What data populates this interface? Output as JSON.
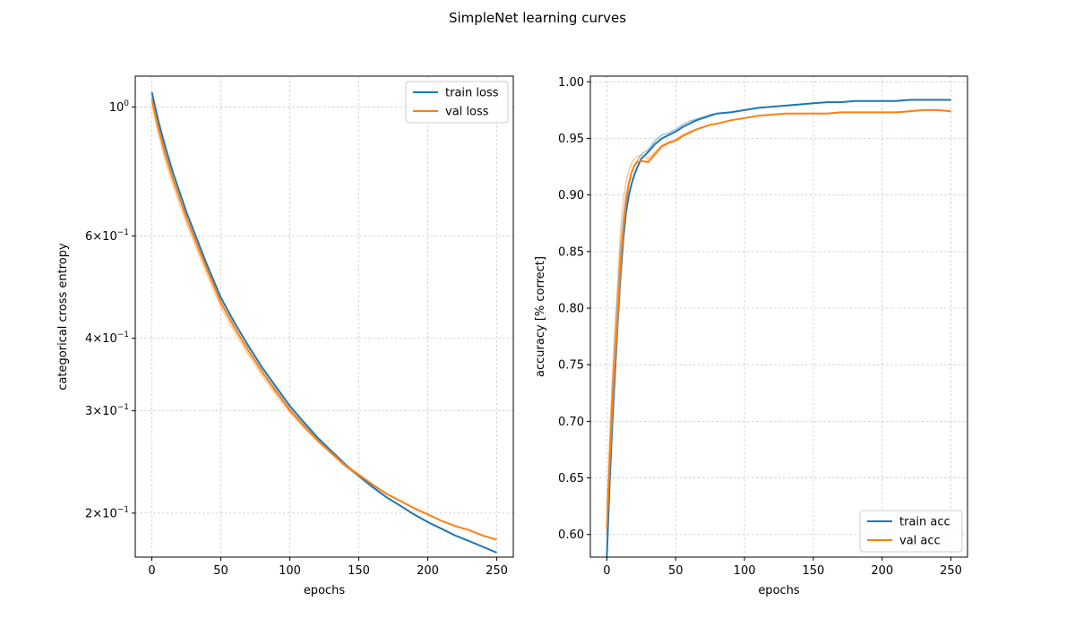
{
  "figure": {
    "suptitle": "SimpleNet learning curves"
  },
  "chart_data": [
    {
      "type": "line",
      "xlabel": "epochs",
      "ylabel": "categorical cross entropy",
      "yscale": "log",
      "xlim": [
        -12,
        262
      ],
      "ylim": [
        0.168,
        1.13
      ],
      "xticks": [
        0,
        50,
        100,
        150,
        200,
        250
      ],
      "yticks": [
        {
          "value": 1.0,
          "label": "10^0"
        },
        {
          "value": 0.6,
          "label": "6×10^-1"
        },
        {
          "value": 0.4,
          "label": "4×10^-1"
        },
        {
          "value": 0.3,
          "label": "3×10^-1"
        },
        {
          "value": 0.2,
          "label": "2×10^-1"
        }
      ],
      "grid": true,
      "legend_loc": "upper right",
      "x": [
        0,
        5,
        10,
        15,
        20,
        25,
        30,
        40,
        50,
        60,
        70,
        80,
        90,
        100,
        110,
        120,
        130,
        140,
        150,
        160,
        170,
        180,
        190,
        200,
        210,
        220,
        230,
        240,
        250
      ],
      "series": [
        {
          "name": "train loss",
          "color": "#1f77b4",
          "values": [
            1.06,
            0.94,
            0.85,
            0.775,
            0.715,
            0.66,
            0.615,
            0.535,
            0.47,
            0.425,
            0.388,
            0.356,
            0.33,
            0.306,
            0.287,
            0.27,
            0.256,
            0.243,
            0.232,
            0.222,
            0.213,
            0.206,
            0.199,
            0.193,
            0.188,
            0.183,
            0.179,
            0.175,
            0.171
          ],
          "raw_values": [
            1.04,
            0.92,
            0.83,
            0.755,
            0.695,
            0.645,
            0.6,
            0.525,
            0.462,
            0.418,
            0.382,
            0.351,
            0.326,
            0.302,
            0.284,
            0.268,
            0.254,
            0.241,
            0.231,
            0.221,
            0.213,
            0.206,
            0.199,
            0.193,
            0.188,
            0.183,
            0.179,
            0.175,
            0.171
          ]
        },
        {
          "name": "val loss",
          "color": "#ff7f0e",
          "values": [
            1.03,
            0.915,
            0.825,
            0.755,
            0.698,
            0.645,
            0.602,
            0.525,
            0.461,
            0.417,
            0.381,
            0.35,
            0.324,
            0.301,
            0.283,
            0.267,
            0.254,
            0.242,
            0.233,
            0.224,
            0.216,
            0.21,
            0.204,
            0.199,
            0.194,
            0.19,
            0.187,
            0.183,
            0.18
          ],
          "raw_values": [
            1.01,
            0.895,
            0.805,
            0.738,
            0.682,
            0.632,
            0.59,
            0.515,
            0.453,
            0.41,
            0.375,
            0.345,
            0.32,
            0.298,
            0.281,
            0.266,
            0.253,
            0.241,
            0.232,
            0.224,
            0.216,
            0.21,
            0.204,
            0.199,
            0.194,
            0.19,
            0.187,
            0.183,
            0.18
          ]
        }
      ]
    },
    {
      "type": "line",
      "xlabel": "epochs",
      "ylabel": "accuracy [% correct]",
      "yscale": "linear",
      "xlim": [
        -12,
        262
      ],
      "ylim": [
        0.58,
        1.005
      ],
      "xticks": [
        0,
        50,
        100,
        150,
        200,
        250
      ],
      "yticks": [
        {
          "value": 0.6,
          "label": "0.60"
        },
        {
          "value": 0.65,
          "label": "0.65"
        },
        {
          "value": 0.7,
          "label": "0.70"
        },
        {
          "value": 0.75,
          "label": "0.75"
        },
        {
          "value": 0.8,
          "label": "0.80"
        },
        {
          "value": 0.85,
          "label": "0.85"
        },
        {
          "value": 0.9,
          "label": "0.90"
        },
        {
          "value": 0.95,
          "label": "0.95"
        },
        {
          "value": 1.0,
          "label": "1.00"
        }
      ],
      "grid": true,
      "legend_loc": "lower right",
      "x": [
        0,
        2,
        4,
        6,
        8,
        10,
        12,
        14,
        16,
        18,
        20,
        22,
        25,
        30,
        35,
        40,
        45,
        50,
        55,
        60,
        65,
        70,
        75,
        80,
        90,
        100,
        110,
        120,
        130,
        140,
        150,
        160,
        170,
        180,
        190,
        200,
        210,
        220,
        230,
        240,
        250
      ],
      "series": [
        {
          "name": "train acc",
          "color": "#1f77b4",
          "values": [
            0.58,
            0.645,
            0.7,
            0.745,
            0.79,
            0.83,
            0.862,
            0.885,
            0.9,
            0.91,
            0.918,
            0.924,
            0.932,
            0.938,
            0.945,
            0.95,
            0.953,
            0.956,
            0.96,
            0.963,
            0.966,
            0.968,
            0.97,
            0.972,
            0.973,
            0.975,
            0.977,
            0.978,
            0.979,
            0.98,
            0.981,
            0.982,
            0.982,
            0.983,
            0.983,
            0.983,
            0.983,
            0.984,
            0.984,
            0.984,
            0.984
          ],
          "raw_values": [
            0.6,
            0.67,
            0.73,
            0.775,
            0.815,
            0.855,
            0.88,
            0.9,
            0.912,
            0.92,
            0.926,
            0.93,
            0.936,
            0.94,
            0.948,
            0.953,
            0.955,
            0.958,
            0.962,
            0.965,
            0.967,
            0.969,
            0.971,
            0.972,
            0.973,
            0.975,
            0.977,
            0.978,
            0.979,
            0.98,
            0.981,
            0.982,
            0.982,
            0.983,
            0.983,
            0.983,
            0.983,
            0.984,
            0.984,
            0.984,
            0.984
          ]
        },
        {
          "name": "val acc",
          "color": "#ff7f0e",
          "values": [
            0.605,
            0.665,
            0.715,
            0.755,
            0.795,
            0.84,
            0.87,
            0.895,
            0.91,
            0.92,
            0.926,
            0.929,
            0.93,
            0.929,
            0.936,
            0.943,
            0.946,
            0.948,
            0.952,
            0.955,
            0.958,
            0.96,
            0.962,
            0.963,
            0.966,
            0.968,
            0.97,
            0.971,
            0.972,
            0.972,
            0.972,
            0.972,
            0.973,
            0.973,
            0.973,
            0.973,
            0.973,
            0.974,
            0.975,
            0.975,
            0.974
          ],
          "raw_values": [
            0.62,
            0.685,
            0.74,
            0.785,
            0.825,
            0.87,
            0.895,
            0.912,
            0.922,
            0.928,
            0.932,
            0.934,
            0.935,
            0.932,
            0.938,
            0.944,
            0.947,
            0.949,
            0.953,
            0.956,
            0.958,
            0.96,
            0.962,
            0.963,
            0.966,
            0.968,
            0.97,
            0.971,
            0.972,
            0.972,
            0.972,
            0.972,
            0.973,
            0.973,
            0.973,
            0.973,
            0.973,
            0.974,
            0.975,
            0.975,
            0.974
          ]
        }
      ]
    }
  ]
}
